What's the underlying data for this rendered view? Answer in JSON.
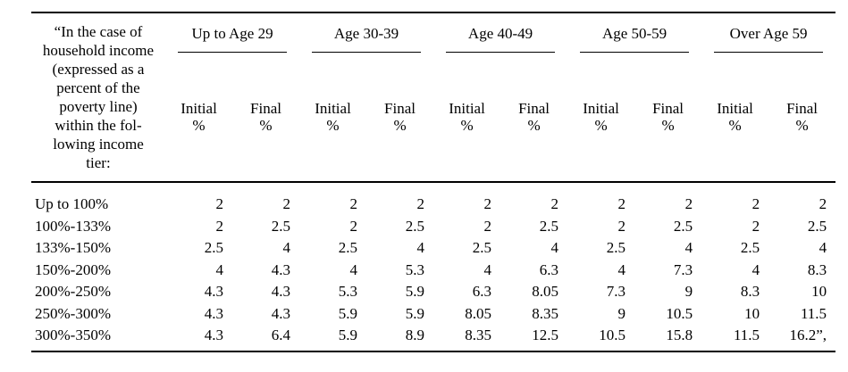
{
  "colors": {
    "background": "#ffffff",
    "text": "#000000",
    "rule": "#000000"
  },
  "table": {
    "corner_header": "“In the case of\nhousehold income\n(expressed as a\npercent of the\npoverty line)\nwithin the fol-\nlowing income\ntier:",
    "sub_initial": "Initial\n%",
    "sub_final": "Final\n%",
    "age_groups": [
      {
        "label": "Up to Age 29"
      },
      {
        "label": "Age 30-39"
      },
      {
        "label": "Age 40-49"
      },
      {
        "label": "Age 50-59"
      },
      {
        "label": "Over Age 59"
      }
    ],
    "rows": [
      {
        "label": "Up to 100%",
        "values": [
          "2",
          "2",
          "2",
          "2",
          "2",
          "2",
          "2",
          "2",
          "2",
          "2"
        ]
      },
      {
        "label": "100%-133%",
        "values": [
          "2",
          "2.5",
          "2",
          "2.5",
          "2",
          "2.5",
          "2",
          "2.5",
          "2",
          "2.5"
        ]
      },
      {
        "label": "133%-150%",
        "values": [
          "2.5",
          "4",
          "2.5",
          "4",
          "2.5",
          "4",
          "2.5",
          "4",
          "2.5",
          "4"
        ]
      },
      {
        "label": "150%-200%",
        "values": [
          "4",
          "4.3",
          "4",
          "5.3",
          "4",
          "6.3",
          "4",
          "7.3",
          "4",
          "8.3"
        ]
      },
      {
        "label": "200%-250%",
        "values": [
          "4.3",
          "4.3",
          "5.3",
          "5.9",
          "6.3",
          "8.05",
          "7.3",
          "9",
          "8.3",
          "10"
        ]
      },
      {
        "label": "250%-300%",
        "values": [
          "4.3",
          "4.3",
          "5.9",
          "5.9",
          "8.05",
          "8.35",
          "9",
          "10.5",
          "10",
          "11.5"
        ]
      },
      {
        "label": "300%-350%",
        "values": [
          "4.3",
          "6.4",
          "5.9",
          "8.9",
          "8.35",
          "12.5",
          "10.5",
          "15.8",
          "11.5",
          "16.2”,"
        ]
      }
    ]
  }
}
